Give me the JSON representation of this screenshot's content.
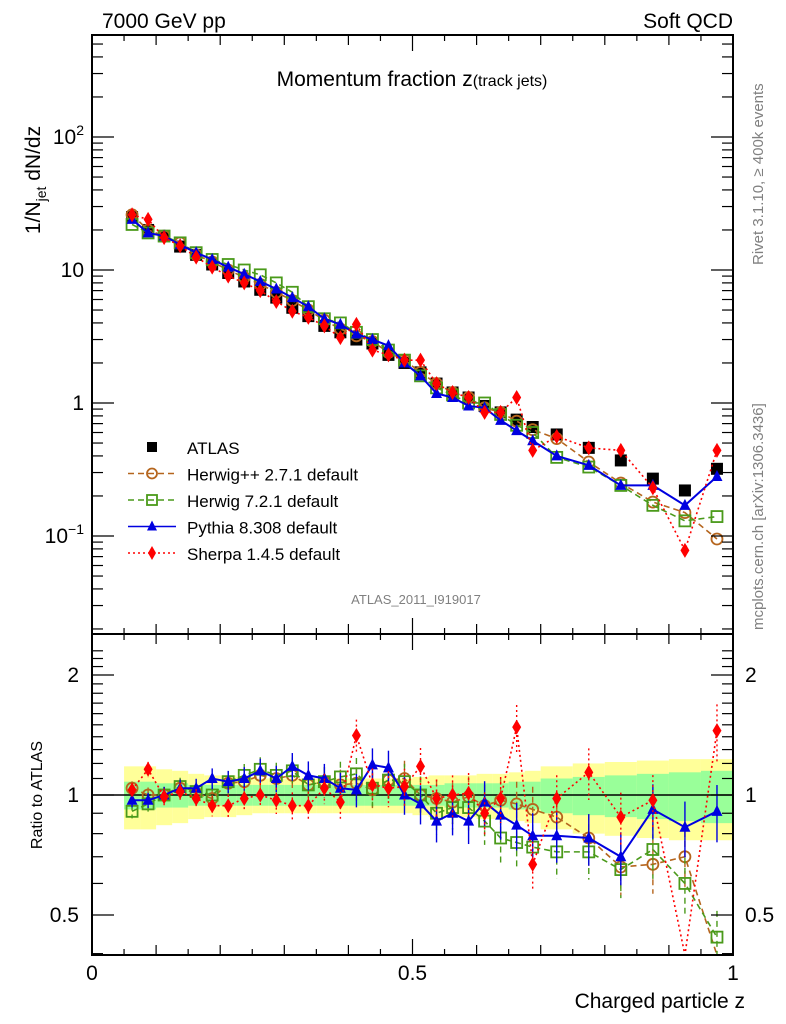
{
  "header": {
    "left": "7000 GeV pp",
    "right": "Soft QCD"
  },
  "side_labels": {
    "rivet": "Rivet 3.1.10, ≥ 400k events",
    "mcplots": "mcplots.cern.ch [arXiv:1306.3436]"
  },
  "chart_data": [
    {
      "type": "scatter",
      "panel": "main",
      "title": "Momentum fraction z",
      "title_suffix": "(track jets)",
      "ylabel": "1/N_jet dN/dz",
      "xlabel": "",
      "yscale": "log",
      "xlim": [
        0,
        1
      ],
      "ylim": [
        0.02,
        800
      ],
      "yticks": [
        {
          "v": 0.1,
          "label": "10^-1"
        },
        {
          "v": 1,
          "label": "1"
        },
        {
          "v": 10,
          "label": "10"
        },
        {
          "v": 100,
          "label": "10^2"
        }
      ],
      "analysis_label": "ATLAS_2011_I919017",
      "legend_position": "lower-left",
      "x": [
        0.0625,
        0.0875,
        0.1125,
        0.1375,
        0.1625,
        0.1875,
        0.2125,
        0.2375,
        0.2625,
        0.2875,
        0.3125,
        0.3375,
        0.3625,
        0.3875,
        0.4125,
        0.4375,
        0.4625,
        0.4875,
        0.5125,
        0.5375,
        0.5625,
        0.5875,
        0.6125,
        0.6375,
        0.6625,
        0.6875,
        0.725,
        0.775,
        0.825,
        0.875,
        0.925,
        0.975
      ],
      "series": [
        {
          "name": "ATLAS",
          "color": "#000000",
          "marker": "square-filled",
          "line": "none",
          "values": [
            25,
            20,
            18,
            15,
            13,
            11,
            9.5,
            8.2,
            7.1,
            6.2,
            5.2,
            4.5,
            3.8,
            3.4,
            3.0,
            2.8,
            2.3,
            2.0,
            1.7,
            1.4,
            1.2,
            1.1,
            0.95,
            0.85,
            0.75,
            0.66,
            0.58,
            0.46,
            0.37,
            0.27,
            0.22,
            0.32
          ]
        },
        {
          "name": "Herwig++ 2.7.1 default",
          "color": "#b5651d",
          "marker": "circle-open",
          "line": "dashed",
          "values": [
            26,
            20,
            18,
            16,
            13,
            11.5,
            10,
            8.8,
            7.8,
            6.8,
            5.9,
            5.0,
            4.2,
            3.6,
            3.2,
            2.9,
            2.4,
            2.1,
            1.7,
            1.4,
            1.2,
            1.1,
            0.92,
            0.85,
            0.73,
            0.63,
            0.54,
            0.36,
            0.25,
            0.18,
            0.15,
            0.095
          ]
        },
        {
          "name": "Herwig 7.2.1 default",
          "color": "#4a9a1a",
          "marker": "square-open",
          "line": "dashed",
          "values": [
            22,
            19,
            18,
            16,
            13.5,
            12,
            11,
            10,
            9.2,
            8.0,
            6.8,
            5.3,
            4.3,
            4.0,
            3.4,
            3.0,
            2.5,
            2.1,
            1.6,
            1.3,
            1.15,
            1.0,
            1.0,
            0.82,
            0.68,
            0.6,
            0.39,
            0.33,
            0.24,
            0.17,
            0.13,
            0.14
          ]
        },
        {
          "name": "Pythia 8.308 default",
          "color": "#0000e0",
          "marker": "triangle-filled",
          "line": "solid",
          "values": [
            24,
            19,
            18,
            15.5,
            13.5,
            12,
            10.5,
            9.3,
            8.2,
            7.2,
            6.2,
            5.3,
            4.3,
            3.9,
            3.3,
            3.0,
            2.7,
            2.0,
            1.6,
            1.18,
            1.1,
            0.95,
            0.92,
            0.74,
            0.62,
            0.52,
            0.4,
            0.34,
            0.24,
            0.24,
            0.17,
            0.28
          ]
        },
        {
          "name": "Sherpa 1.4.5 default",
          "color": "#ff0000",
          "marker": "diamond-filled",
          "line": "dotted",
          "values": [
            26,
            24,
            17.5,
            15.2,
            12.5,
            10.5,
            9.0,
            8.0,
            7.0,
            5.8,
            4.9,
            4.4,
            3.8,
            3.1,
            3.9,
            2.5,
            2.3,
            2.1,
            2.1,
            1.4,
            1.2,
            1.1,
            0.85,
            0.85,
            1.1,
            0.44,
            0.56,
            0.46,
            0.44,
            0.23,
            0.078,
            0.44
          ]
        }
      ]
    },
    {
      "type": "scatter",
      "panel": "ratio",
      "ylabel": "Ratio to ATLAS",
      "xlabel": "Charged particle z",
      "yscale": "log",
      "xlim": [
        0,
        1
      ],
      "ylim": [
        0.4,
        2.4
      ],
      "yticks": [
        {
          "v": 0.5,
          "label": "0.5"
        },
        {
          "v": 1,
          "label": "1"
        },
        {
          "v": 2,
          "label": "2"
        }
      ],
      "xticks": [
        {
          "v": 0,
          "label": "0"
        },
        {
          "v": 0.5,
          "label": "0.5"
        },
        {
          "v": 1,
          "label": "1"
        }
      ],
      "bands": {
        "inner_color": "#99ff99",
        "outer_color": "#ffff99",
        "bins": [
          [
            0.05,
            0.075
          ],
          [
            0.075,
            0.1
          ],
          [
            0.1,
            0.125
          ],
          [
            0.125,
            0.15
          ],
          [
            0.15,
            0.175
          ],
          [
            0.175,
            0.2
          ],
          [
            0.2,
            0.225
          ],
          [
            0.225,
            0.25
          ],
          [
            0.25,
            0.275
          ],
          [
            0.275,
            0.3
          ],
          [
            0.3,
            0.325
          ],
          [
            0.325,
            0.35
          ],
          [
            0.35,
            0.375
          ],
          [
            0.375,
            0.4
          ],
          [
            0.4,
            0.425
          ],
          [
            0.425,
            0.45
          ],
          [
            0.45,
            0.475
          ],
          [
            0.475,
            0.5
          ],
          [
            0.5,
            0.525
          ],
          [
            0.525,
            0.55
          ],
          [
            0.55,
            0.575
          ],
          [
            0.575,
            0.6
          ],
          [
            0.6,
            0.625
          ],
          [
            0.625,
            0.65
          ],
          [
            0.65,
            0.675
          ],
          [
            0.675,
            0.7
          ],
          [
            0.7,
            0.75
          ],
          [
            0.75,
            0.8
          ],
          [
            0.8,
            0.85
          ],
          [
            0.85,
            0.9
          ],
          [
            0.9,
            0.95
          ],
          [
            0.95,
            1.0
          ]
        ],
        "inner": [
          0.08,
          0.08,
          0.07,
          0.07,
          0.06,
          0.06,
          0.06,
          0.06,
          0.06,
          0.06,
          0.06,
          0.06,
          0.06,
          0.06,
          0.06,
          0.06,
          0.06,
          0.06,
          0.06,
          0.06,
          0.07,
          0.07,
          0.07,
          0.07,
          0.08,
          0.08,
          0.1,
          0.11,
          0.12,
          0.13,
          0.14,
          0.15
        ],
        "outer": [
          0.18,
          0.18,
          0.16,
          0.15,
          0.13,
          0.12,
          0.12,
          0.11,
          0.1,
          0.1,
          0.1,
          0.1,
          0.1,
          0.1,
          0.1,
          0.1,
          0.1,
          0.1,
          0.11,
          0.12,
          0.12,
          0.12,
          0.13,
          0.13,
          0.14,
          0.15,
          0.18,
          0.2,
          0.21,
          0.22,
          0.23,
          0.23
        ]
      },
      "x": [
        0.0625,
        0.0875,
        0.1125,
        0.1375,
        0.1625,
        0.1875,
        0.2125,
        0.2375,
        0.2625,
        0.2875,
        0.3125,
        0.3375,
        0.3625,
        0.3875,
        0.4125,
        0.4375,
        0.4625,
        0.4875,
        0.5125,
        0.5375,
        0.5625,
        0.5875,
        0.6125,
        0.6375,
        0.6625,
        0.6875,
        0.725,
        0.775,
        0.825,
        0.875,
        0.925,
        0.975
      ],
      "series": [
        {
          "name": "Herwig++ 2.7.1 default",
          "color": "#b5651d",
          "marker": "circle-open",
          "line": "dashed",
          "values": [
            1.04,
            1.0,
            1.0,
            1.04,
            1.01,
            0.98,
            1.07,
            1.08,
            1.12,
            1.1,
            1.12,
            1.06,
            1.08,
            1.06,
            1.07,
            1.03,
            1.09,
            1.1,
            1.0,
            0.98,
            0.96,
            0.99,
            0.94,
            0.97,
            0.95,
            0.92,
            0.88,
            0.78,
            0.66,
            0.67,
            0.7,
            0.27
          ]
        },
        {
          "name": "Herwig 7.2.1 default",
          "color": "#4a9a1a",
          "marker": "square-open",
          "line": "dashed",
          "values": [
            0.91,
            0.95,
            1.0,
            1.05,
            1.02,
            1.0,
            1.08,
            1.12,
            1.16,
            1.12,
            1.15,
            1.06,
            1.08,
            1.11,
            1.13,
            1.04,
            1.09,
            1.08,
            1.0,
            0.9,
            0.93,
            0.93,
            0.86,
            0.78,
            0.76,
            0.74,
            0.72,
            0.72,
            0.65,
            0.73,
            0.6,
            0.44
          ]
        },
        {
          "name": "Pythia 8.308 default",
          "color": "#0000e0",
          "marker": "triangle-filled",
          "line": "solid",
          "values": [
            0.97,
            0.97,
            1.0,
            1.04,
            1.04,
            1.1,
            1.08,
            1.1,
            1.15,
            1.1,
            1.18,
            1.12,
            1.1,
            1.04,
            1.03,
            1.19,
            1.17,
            1.0,
            0.95,
            0.86,
            0.9,
            0.86,
            0.96,
            0.89,
            0.84,
            0.79,
            0.79,
            0.78,
            0.7,
            0.92,
            0.83,
            0.91
          ]
        },
        {
          "name": "Sherpa 1.4.5 default",
          "color": "#ff0000",
          "marker": "diamond-filled",
          "line": "dotted",
          "values": [
            1.03,
            1.16,
            0.99,
            1.02,
            0.98,
            0.94,
            0.94,
            0.98,
            1.0,
            0.97,
            0.94,
            0.94,
            1.04,
            0.96,
            1.41,
            1.06,
            1.04,
            1.05,
            1.18,
            0.98,
            1.0,
            1.01,
            0.9,
            0.98,
            1.48,
            0.67,
            0.98,
            1.14,
            0.88,
            0.97,
            0.34,
            1.45
          ]
        }
      ]
    }
  ]
}
